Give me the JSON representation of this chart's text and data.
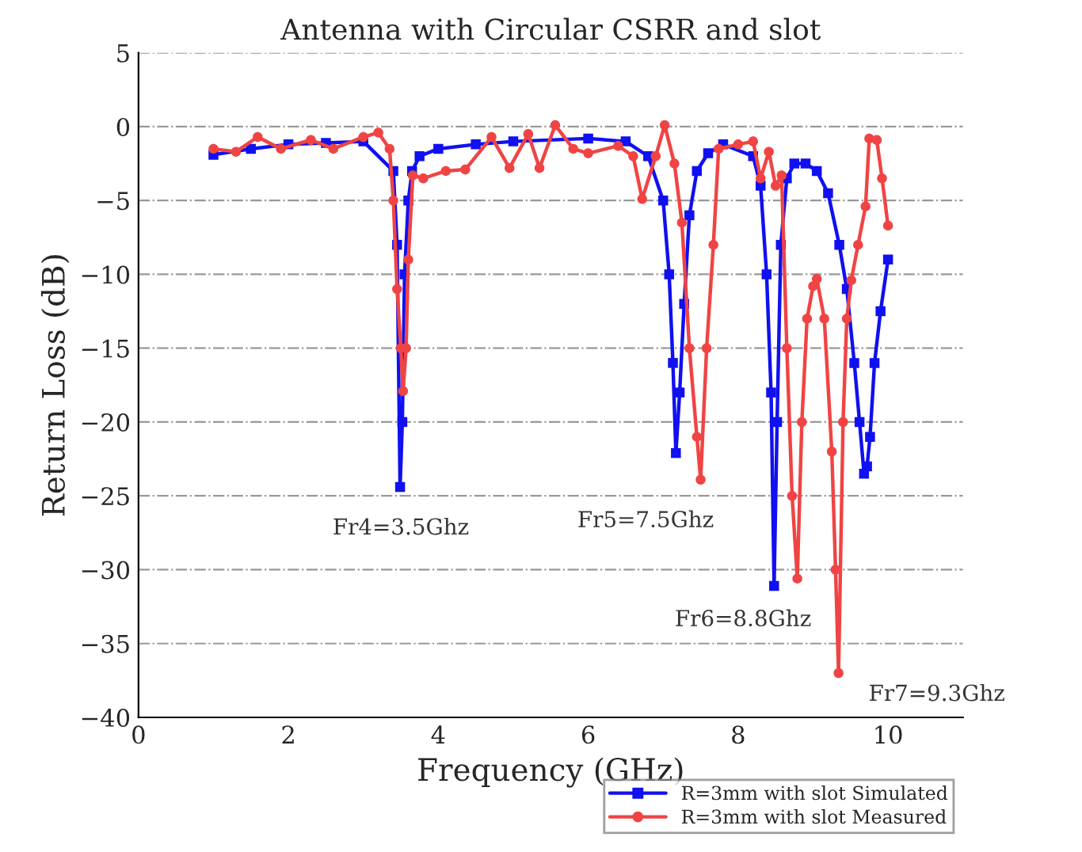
{
  "chart_data": {
    "type": "line",
    "title": "Antenna with Circular CSRR and slot",
    "xlabel": "Frequency (GHz)",
    "ylabel": "Return Loss (dB)",
    "xlim": [
      0,
      11
    ],
    "xticks": [
      0,
      2,
      4,
      6,
      8,
      10
    ],
    "ylim": [
      -40,
      5
    ],
    "yticks": [
      5,
      0,
      -5,
      -10,
      -15,
      -20,
      -25,
      -30,
      -35,
      -40
    ],
    "grid": "y",
    "legend": "bottom right",
    "series": [
      {
        "name": "R=3mm with slot Simulated",
        "color": "#1010f0",
        "marker": "square",
        "x": [
          1.0,
          1.5,
          2.0,
          2.5,
          3.0,
          3.4,
          3.45,
          3.49,
          3.52,
          3.55,
          3.6,
          3.65,
          3.75,
          4.0,
          4.5,
          5.0,
          6.0,
          6.5,
          6.8,
          7.0,
          7.08,
          7.13,
          7.17,
          7.22,
          7.28,
          7.35,
          7.45,
          7.6,
          7.8,
          8.2,
          8.3,
          8.38,
          8.44,
          8.48,
          8.52,
          8.57,
          8.65,
          8.75,
          8.9,
          9.05,
          9.2,
          9.35,
          9.45,
          9.55,
          9.62,
          9.68,
          9.72,
          9.76,
          9.82,
          9.9,
          10.0
        ],
        "values": [
          -1.9,
          -1.5,
          -1.2,
          -1.1,
          -1.0,
          -3.0,
          -8.0,
          -24.4,
          -20.0,
          -10.0,
          -5.0,
          -3.0,
          -2.0,
          -1.5,
          -1.2,
          -1.0,
          -0.8,
          -1.0,
          -2.0,
          -5.0,
          -10.0,
          -16.0,
          -22.1,
          -18.0,
          -12.0,
          -6.0,
          -3.0,
          -1.8,
          -1.2,
          -2.0,
          -4.0,
          -10.0,
          -18.0,
          -31.1,
          -20.0,
          -8.0,
          -3.5,
          -2.5,
          -2.5,
          -3.0,
          -4.5,
          -8.0,
          -11.0,
          -16.0,
          -20.0,
          -23.5,
          -23.0,
          -21.0,
          -16.0,
          -12.5,
          -9.0
        ]
      },
      {
        "name": "R=3mm with slot Measured",
        "color": "#f04444",
        "marker": "circle",
        "x": [
          1.0,
          1.3,
          1.59,
          1.9,
          2.3,
          2.6,
          3.0,
          3.2,
          3.35,
          3.4,
          3.45,
          3.5,
          3.53,
          3.57,
          3.6,
          3.66,
          3.8,
          4.1,
          4.36,
          4.71,
          4.95,
          5.2,
          5.35,
          5.56,
          5.8,
          6.0,
          6.4,
          6.6,
          6.72,
          6.9,
          7.02,
          7.15,
          7.25,
          7.35,
          7.45,
          7.5,
          7.58,
          7.67,
          7.74,
          8.0,
          8.2,
          8.3,
          8.41,
          8.5,
          8.58,
          8.65,
          8.72,
          8.79,
          8.85,
          8.92,
          9.0,
          9.05,
          9.15,
          9.25,
          9.3,
          9.34,
          9.4,
          9.45,
          9.51,
          9.6,
          9.7,
          9.75,
          9.85,
          9.92,
          10.0
        ],
        "values": [
          -1.5,
          -1.7,
          -0.7,
          -1.5,
          -0.9,
          -1.5,
          -0.7,
          -0.4,
          -1.5,
          -5.0,
          -11.0,
          -15.0,
          -17.9,
          -15.0,
          -9.0,
          -3.3,
          -3.5,
          -3.0,
          -2.9,
          -0.7,
          -2.8,
          -0.5,
          -2.8,
          0.1,
          -1.5,
          -1.8,
          -1.3,
          -2.0,
          -4.9,
          -2.0,
          0.1,
          -2.5,
          -6.5,
          -15.0,
          -21.0,
          -23.9,
          -15.0,
          -8.0,
          -1.5,
          -1.2,
          -1.0,
          -3.5,
          -1.7,
          -4.0,
          -3.3,
          -15.0,
          -25.0,
          -30.6,
          -20.0,
          -13.0,
          -10.8,
          -10.3,
          -13.0,
          -22.0,
          -30.0,
          -37.0,
          -20.0,
          -13.0,
          -10.4,
          -8.0,
          -5.4,
          -0.8,
          -0.9,
          -3.5,
          -6.7
        ]
      }
    ],
    "annotations": [
      {
        "text": "Fr4=3.5Ghz",
        "x": 3.5,
        "y": -24.4
      },
      {
        "text": "Fr5=7.5Ghz",
        "x": 7.5,
        "y": -23.9
      },
      {
        "text": "Fr6=8.8Ghz",
        "x": 8.8,
        "y": -30.6
      },
      {
        "text": "Fr7=9.3Ghz",
        "x": 9.3,
        "y": -37.0
      }
    ]
  }
}
